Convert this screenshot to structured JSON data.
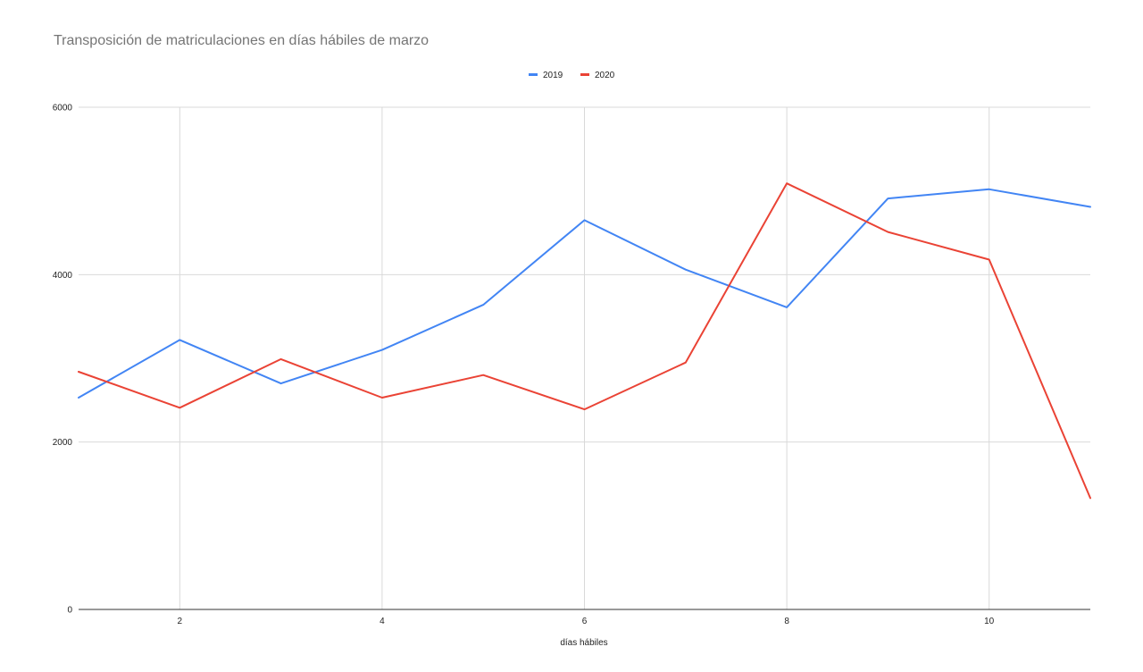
{
  "chart_data": {
    "type": "line",
    "title": "Transposición de matriculaciones en días hábiles de marzo",
    "xlabel": "días hábiles",
    "ylabel": "",
    "x": [
      1,
      2,
      3,
      4,
      5,
      6,
      7,
      8,
      9,
      10,
      11
    ],
    "xlim": [
      1,
      11
    ],
    "ylim": [
      0,
      6000
    ],
    "x_ticks": [
      2,
      4,
      6,
      8,
      10
    ],
    "y_ticks": [
      0,
      2000,
      4000,
      6000
    ],
    "grid": true,
    "legend_position": "top-center",
    "series": [
      {
        "name": "2019",
        "color": "#4285f4",
        "values": [
          2530,
          3220,
          2700,
          3100,
          3640,
          4650,
          4060,
          3610,
          4910,
          5020,
          4810
        ]
      },
      {
        "name": "2020",
        "color": "#ea4335",
        "values": [
          2840,
          2410,
          2990,
          2530,
          2800,
          2390,
          2950,
          5090,
          4510,
          4180,
          1330
        ]
      }
    ]
  }
}
